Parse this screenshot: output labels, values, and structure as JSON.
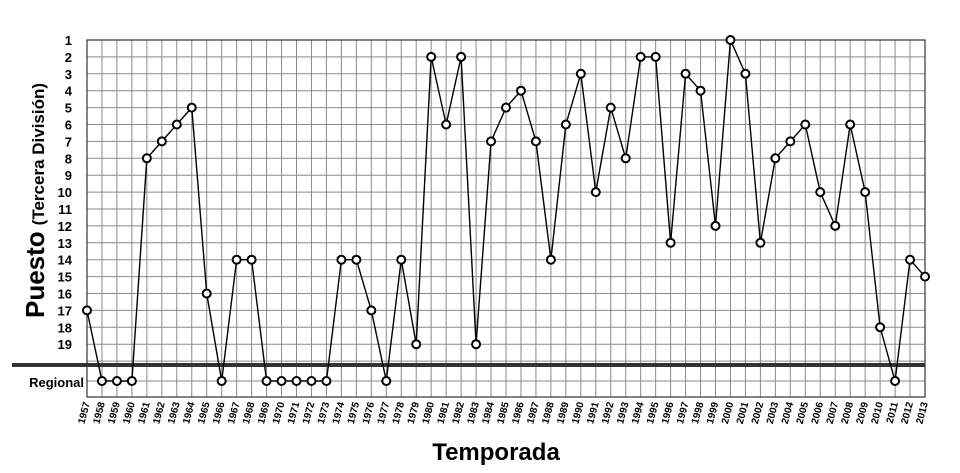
{
  "chart_data": {
    "type": "line",
    "title": "",
    "ylabel": "Puesto",
    "ylabel_sub": "(Tercera División)",
    "xlabel": "Temporada",
    "y_inverted": true,
    "y_ticks": [
      "1",
      "2",
      "3",
      "4",
      "5",
      "6",
      "7",
      "8",
      "9",
      "10",
      "11",
      "12",
      "13",
      "14",
      "15",
      "16",
      "17",
      "18",
      "19"
    ],
    "regional_label": "Regional",
    "ylim": [
      1,
      21
    ],
    "grid": true,
    "legend": "none",
    "line_color": "#000000",
    "marker": "open-circle",
    "categories": [
      "1957",
      "1958",
      "1959",
      "1960",
      "1961",
      "1962",
      "1963",
      "1964",
      "1965",
      "1966",
      "1967",
      "1968",
      "1969",
      "1970",
      "1971",
      "1972",
      "1973",
      "1974",
      "1975",
      "1976",
      "1977",
      "1978",
      "1979",
      "1980",
      "1981",
      "1982",
      "1983",
      "1984",
      "1985",
      "1986",
      "1987",
      "1988",
      "1989",
      "1990",
      "1991",
      "1992",
      "1993",
      "1994",
      "1995",
      "1996",
      "1997",
      "1998",
      "1999",
      "2000",
      "2001",
      "2002",
      "2003",
      "2004",
      "2005",
      "2006",
      "2007",
      "2008",
      "2009",
      "2010",
      "2011",
      "2012",
      "2013"
    ],
    "values": [
      "17",
      "Regional",
      "Regional",
      "Regional",
      "8",
      "7",
      "6",
      "5",
      "16",
      "Regional",
      "14",
      "14",
      "Regional",
      "Regional",
      "Regional",
      "Regional",
      "Regional",
      "14",
      "14",
      "17",
      "Regional",
      "14",
      "19",
      "2",
      "6",
      "2",
      "19",
      "7",
      "5",
      "4",
      "7",
      "14",
      "6",
      "3",
      "10",
      "5",
      "8",
      "2",
      "2",
      "13",
      "3",
      "4",
      "12",
      "1",
      "3",
      "13",
      "8",
      "7",
      "6",
      "10",
      "12",
      "6",
      "10",
      "18",
      "Regional",
      "14",
      "15"
    ]
  }
}
